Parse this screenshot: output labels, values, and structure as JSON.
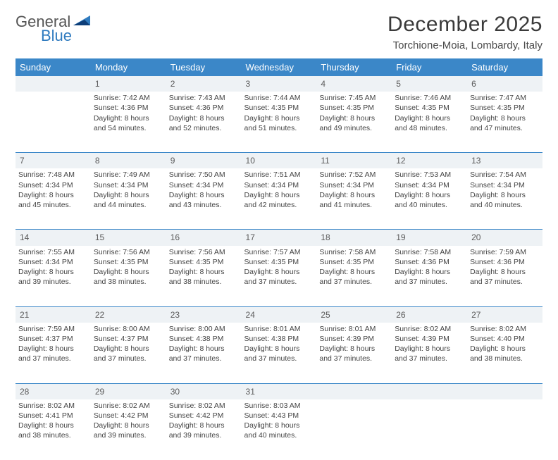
{
  "logo": {
    "word1": "General",
    "word2": "Blue"
  },
  "title": "December 2025",
  "location": "Torchione-Moia, Lombardy, Italy",
  "colors": {
    "header_bg": "#3b87c8",
    "header_text": "#ffffff",
    "daynum_bg": "#eef2f5",
    "sep": "#3b87c8",
    "logo_gray": "#555555",
    "logo_blue": "#2f7bbf"
  },
  "day_headers": [
    "Sunday",
    "Monday",
    "Tuesday",
    "Wednesday",
    "Thursday",
    "Friday",
    "Saturday"
  ],
  "weeks": [
    {
      "nums": [
        "",
        "1",
        "2",
        "3",
        "4",
        "5",
        "6"
      ],
      "cells": [
        null,
        {
          "sunrise": "7:42 AM",
          "sunset": "4:36 PM",
          "daylight": "8 hours and 54 minutes."
        },
        {
          "sunrise": "7:43 AM",
          "sunset": "4:36 PM",
          "daylight": "8 hours and 52 minutes."
        },
        {
          "sunrise": "7:44 AM",
          "sunset": "4:35 PM",
          "daylight": "8 hours and 51 minutes."
        },
        {
          "sunrise": "7:45 AM",
          "sunset": "4:35 PM",
          "daylight": "8 hours and 49 minutes."
        },
        {
          "sunrise": "7:46 AM",
          "sunset": "4:35 PM",
          "daylight": "8 hours and 48 minutes."
        },
        {
          "sunrise": "7:47 AM",
          "sunset": "4:35 PM",
          "daylight": "8 hours and 47 minutes."
        }
      ]
    },
    {
      "nums": [
        "7",
        "8",
        "9",
        "10",
        "11",
        "12",
        "13"
      ],
      "cells": [
        {
          "sunrise": "7:48 AM",
          "sunset": "4:34 PM",
          "daylight": "8 hours and 45 minutes."
        },
        {
          "sunrise": "7:49 AM",
          "sunset": "4:34 PM",
          "daylight": "8 hours and 44 minutes."
        },
        {
          "sunrise": "7:50 AM",
          "sunset": "4:34 PM",
          "daylight": "8 hours and 43 minutes."
        },
        {
          "sunrise": "7:51 AM",
          "sunset": "4:34 PM",
          "daylight": "8 hours and 42 minutes."
        },
        {
          "sunrise": "7:52 AM",
          "sunset": "4:34 PM",
          "daylight": "8 hours and 41 minutes."
        },
        {
          "sunrise": "7:53 AM",
          "sunset": "4:34 PM",
          "daylight": "8 hours and 40 minutes."
        },
        {
          "sunrise": "7:54 AM",
          "sunset": "4:34 PM",
          "daylight": "8 hours and 40 minutes."
        }
      ]
    },
    {
      "nums": [
        "14",
        "15",
        "16",
        "17",
        "18",
        "19",
        "20"
      ],
      "cells": [
        {
          "sunrise": "7:55 AM",
          "sunset": "4:34 PM",
          "daylight": "8 hours and 39 minutes."
        },
        {
          "sunrise": "7:56 AM",
          "sunset": "4:35 PM",
          "daylight": "8 hours and 38 minutes."
        },
        {
          "sunrise": "7:56 AM",
          "sunset": "4:35 PM",
          "daylight": "8 hours and 38 minutes."
        },
        {
          "sunrise": "7:57 AM",
          "sunset": "4:35 PM",
          "daylight": "8 hours and 37 minutes."
        },
        {
          "sunrise": "7:58 AM",
          "sunset": "4:35 PM",
          "daylight": "8 hours and 37 minutes."
        },
        {
          "sunrise": "7:58 AM",
          "sunset": "4:36 PM",
          "daylight": "8 hours and 37 minutes."
        },
        {
          "sunrise": "7:59 AM",
          "sunset": "4:36 PM",
          "daylight": "8 hours and 37 minutes."
        }
      ]
    },
    {
      "nums": [
        "21",
        "22",
        "23",
        "24",
        "25",
        "26",
        "27"
      ],
      "cells": [
        {
          "sunrise": "7:59 AM",
          "sunset": "4:37 PM",
          "daylight": "8 hours and 37 minutes."
        },
        {
          "sunrise": "8:00 AM",
          "sunset": "4:37 PM",
          "daylight": "8 hours and 37 minutes."
        },
        {
          "sunrise": "8:00 AM",
          "sunset": "4:38 PM",
          "daylight": "8 hours and 37 minutes."
        },
        {
          "sunrise": "8:01 AM",
          "sunset": "4:38 PM",
          "daylight": "8 hours and 37 minutes."
        },
        {
          "sunrise": "8:01 AM",
          "sunset": "4:39 PM",
          "daylight": "8 hours and 37 minutes."
        },
        {
          "sunrise": "8:02 AM",
          "sunset": "4:39 PM",
          "daylight": "8 hours and 37 minutes."
        },
        {
          "sunrise": "8:02 AM",
          "sunset": "4:40 PM",
          "daylight": "8 hours and 38 minutes."
        }
      ]
    },
    {
      "nums": [
        "28",
        "29",
        "30",
        "31",
        "",
        "",
        ""
      ],
      "cells": [
        {
          "sunrise": "8:02 AM",
          "sunset": "4:41 PM",
          "daylight": "8 hours and 38 minutes."
        },
        {
          "sunrise": "8:02 AM",
          "sunset": "4:42 PM",
          "daylight": "8 hours and 39 minutes."
        },
        {
          "sunrise": "8:02 AM",
          "sunset": "4:42 PM",
          "daylight": "8 hours and 39 minutes."
        },
        {
          "sunrise": "8:03 AM",
          "sunset": "4:43 PM",
          "daylight": "8 hours and 40 minutes."
        },
        null,
        null,
        null
      ]
    }
  ],
  "labels": {
    "sunrise": "Sunrise:",
    "sunset": "Sunset:",
    "daylight": "Daylight:"
  }
}
